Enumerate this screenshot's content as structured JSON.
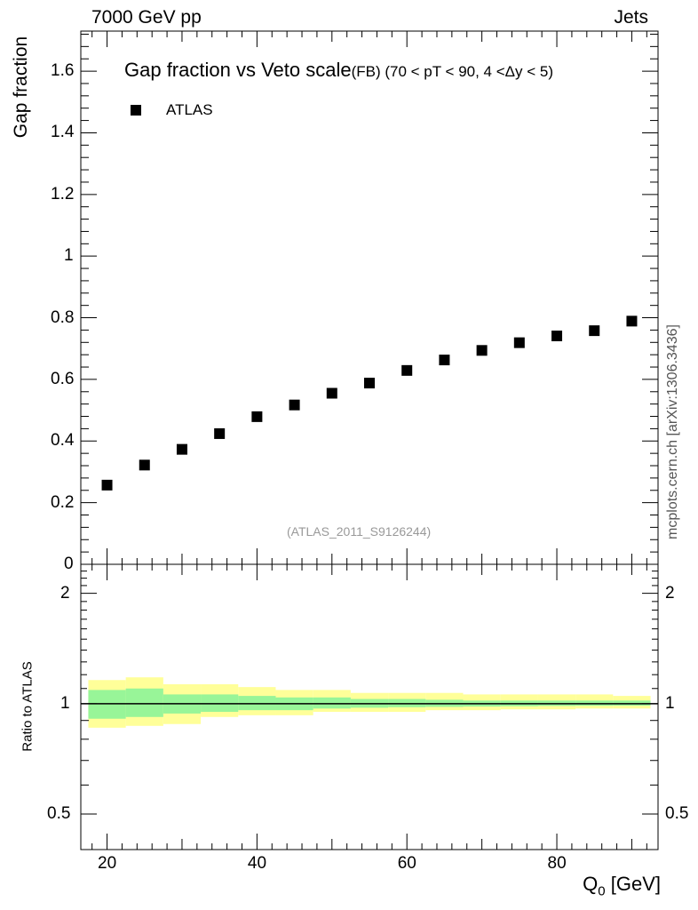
{
  "header": {
    "left": "7000 GeV pp",
    "right": "Jets"
  },
  "title": {
    "main": "Gap fraction vs Veto scale",
    "sub": "(FB) (70 < pT <  90, 4 <Δy < 5)"
  },
  "legend": {
    "label": "ATLAS"
  },
  "analysis_label": "(ATLAS_2011_S9126244)",
  "source_label": "mcplots.cern.ch [arXiv:1306.3436]",
  "axes": {
    "y_top_title": "Gap fraction",
    "y_bottom_title": "Ratio to ATLAS",
    "x_title_main": "Q",
    "x_title_sub": "0",
    "x_title_unit": " [GeV]"
  },
  "colors": {
    "marker": "#000000",
    "band_inner": "#98f598",
    "band_outer": "#ffff99",
    "axis": "#000000",
    "muted_text": "#999999"
  },
  "chart_data": [
    {
      "type": "scatter",
      "title": "Gap fraction vs Veto scale",
      "xlabel": "Q0 [GeV]",
      "ylabel": "Gap fraction",
      "xlim": [
        16.5,
        93.5
      ],
      "ylim": [
        0,
        1.73
      ],
      "y_ticks": [
        0,
        0.2,
        0.4,
        0.6,
        0.8,
        1,
        1.2,
        1.4,
        1.6
      ],
      "y_tick_labels": [
        "0",
        "0.2",
        "0.4",
        "0.6",
        "0.8",
        "1",
        "1.2",
        "1.4",
        "1.6"
      ],
      "series": [
        {
          "name": "ATLAS",
          "x": [
            20,
            25,
            30,
            35,
            40,
            45,
            50,
            55,
            60,
            65,
            70,
            75,
            80,
            85,
            90
          ],
          "y": [
            0.257,
            0.322,
            0.373,
            0.424,
            0.479,
            0.517,
            0.555,
            0.588,
            0.629,
            0.663,
            0.694,
            0.719,
            0.741,
            0.758,
            0.789
          ]
        }
      ]
    },
    {
      "type": "area",
      "ylabel": "Ratio to ATLAS",
      "xlabel": "Q0 [GeV]",
      "xlim": [
        16.5,
        93.5
      ],
      "ylim": [
        0.4,
        2.4
      ],
      "y_scale": "log",
      "y_ticks": [
        0.5,
        1,
        2
      ],
      "y_tick_labels": [
        "0.5",
        "1",
        "2"
      ],
      "x_ticks": [
        20,
        40,
        60,
        80
      ],
      "x_tick_labels": [
        "20",
        "40",
        "60",
        "80"
      ],
      "reference_line": 1,
      "bins": [
        [
          17.5,
          22.5
        ],
        [
          22.5,
          27.5
        ],
        [
          27.5,
          32.5
        ],
        [
          32.5,
          37.5
        ],
        [
          37.5,
          42.5
        ],
        [
          42.5,
          47.5
        ],
        [
          47.5,
          52.5
        ],
        [
          52.5,
          57.5
        ],
        [
          57.5,
          62.5
        ],
        [
          62.5,
          67.5
        ],
        [
          67.5,
          72.5
        ],
        [
          72.5,
          77.5
        ],
        [
          77.5,
          82.5
        ],
        [
          82.5,
          87.5
        ],
        [
          87.5,
          92.5
        ]
      ],
      "series": [
        {
          "name": "stat",
          "lower": [
            0.91,
            0.92,
            0.94,
            0.95,
            0.96,
            0.96,
            0.97,
            0.975,
            0.978,
            0.98,
            0.982,
            0.984,
            0.986,
            0.987,
            0.988
          ],
          "upper": [
            1.09,
            1.1,
            1.06,
            1.06,
            1.05,
            1.04,
            1.04,
            1.03,
            1.03,
            1.025,
            1.02,
            1.02,
            1.02,
            1.02,
            1.02
          ]
        },
        {
          "name": "total",
          "lower": [
            0.86,
            0.87,
            0.88,
            0.92,
            0.93,
            0.93,
            0.95,
            0.95,
            0.95,
            0.96,
            0.96,
            0.965,
            0.965,
            0.97,
            0.97
          ],
          "upper": [
            1.16,
            1.18,
            1.13,
            1.13,
            1.11,
            1.09,
            1.09,
            1.07,
            1.07,
            1.07,
            1.06,
            1.06,
            1.06,
            1.06,
            1.05
          ]
        }
      ]
    }
  ]
}
